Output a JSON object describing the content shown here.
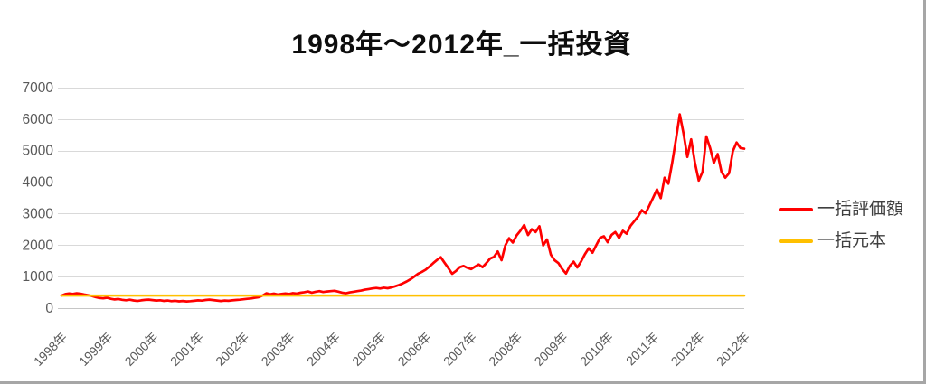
{
  "window": {
    "background": "#ffffff",
    "border_color": "#a6a6a6"
  },
  "chart": {
    "title": "1998年〜2012年_一括投資"
  },
  "legend": {
    "items": [
      {
        "label": "一括評価額",
        "color": "#ff0000"
      },
      {
        "label": "一括元本",
        "color": "#ffc000"
      }
    ]
  },
  "colors": {
    "grid": "#d9d9d9",
    "axis": "#c6c6c6",
    "tick_label": "#595959",
    "title": "#0d0d0d",
    "legend_text": "#404040"
  },
  "chart_data": {
    "type": "line",
    "title": "1998年〜2012年_一括投資",
    "xlabel": "",
    "ylabel": "",
    "ylim": [
      0,
      7000
    ],
    "y_ticks": [
      0,
      1000,
      2000,
      3000,
      4000,
      5000,
      6000,
      7000
    ],
    "x_tick_labels": [
      "1998年",
      "1999年",
      "2000年",
      "2001年",
      "2002年",
      "2003年",
      "2004年",
      "2005年",
      "2006年",
      "2007年",
      "2008年",
      "2009年",
      "2010年",
      "2011年",
      "2012年",
      "2012年"
    ],
    "x_tick_rotation_deg": -45,
    "grid": "horizontal",
    "legend_position": "right",
    "x_start": "1998-01",
    "x_end": "2013-01",
    "points_per_year": 12,
    "series": [
      {
        "name": "一括評価額",
        "color": "#ff0000",
        "stroke_width": 2.7,
        "values": [
          400,
          445,
          465,
          450,
          470,
          455,
          430,
          410,
          385,
          350,
          320,
          310,
          330,
          295,
          275,
          290,
          265,
          250,
          268,
          245,
          228,
          246,
          260,
          270,
          255,
          242,
          250,
          230,
          240,
          222,
          232,
          216,
          226,
          212,
          222,
          232,
          248,
          238,
          258,
          270,
          256,
          242,
          228,
          240,
          232,
          248,
          258,
          268,
          282,
          295,
          308,
          328,
          348,
          400,
          470,
          440,
          458,
          432,
          450,
          462,
          448,
          475,
          458,
          488,
          505,
          528,
          492,
          518,
          538,
          512,
          528,
          540,
          552,
          522,
          492,
          470,
          498,
          518,
          538,
          556,
          585,
          605,
          625,
          640,
          622,
          648,
          632,
          658,
          695,
          735,
          785,
          845,
          915,
          1000,
          1090,
          1150,
          1220,
          1320,
          1430,
          1530,
          1615,
          1440,
          1270,
          1090,
          1180,
          1300,
          1340,
          1280,
          1240,
          1315,
          1385,
          1300,
          1430,
          1575,
          1625,
          1800,
          1520,
          1990,
          2220,
          2080,
          2310,
          2460,
          2640,
          2320,
          2505,
          2415,
          2600,
          1990,
          2180,
          1700,
          1520,
          1430,
          1240,
          1100,
          1340,
          1475,
          1290,
          1480,
          1710,
          1900,
          1760,
          2000,
          2230,
          2280,
          2090,
          2320,
          2415,
          2225,
          2455,
          2360,
          2610,
          2760,
          2910,
          3110,
          3010,
          3260,
          3510,
          3770,
          3490,
          4140,
          3950,
          4610,
          5360,
          6150,
          5540,
          4800,
          5360,
          4610,
          4050,
          4330,
          5450,
          5080,
          4610,
          4890,
          4330,
          4140,
          4280,
          4980,
          5260,
          5080,
          5060
        ]
      },
      {
        "name": "一括元本",
        "color": "#ffc000",
        "stroke_width": 2.5,
        "values": [
          400,
          400
        ]
      }
    ]
  }
}
